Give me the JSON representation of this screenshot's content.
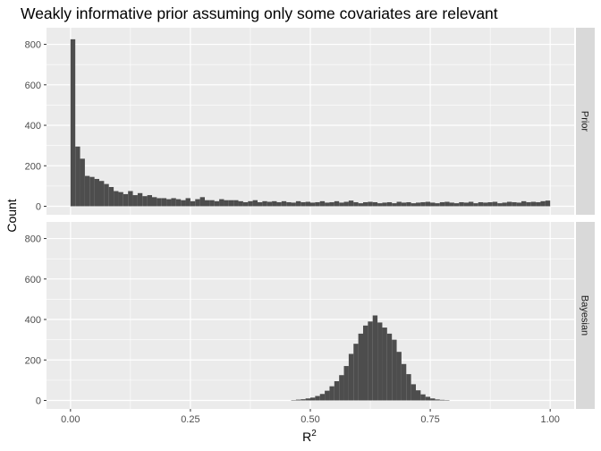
{
  "chart_data": {
    "type": "histogram",
    "title": "Weakly informative prior assuming only some covariates are relevant",
    "xlabel": "R",
    "xlabel_superscript": "2",
    "ylabel": "Count",
    "xlim": [
      0,
      1
    ],
    "ylim": [
      0,
      840
    ],
    "x_ticks": [
      {
        "value": 0.0,
        "label": "0.00"
      },
      {
        "value": 0.25,
        "label": "0.25"
      },
      {
        "value": 0.5,
        "label": "0.50"
      },
      {
        "value": 0.75,
        "label": "0.75"
      },
      {
        "value": 1.0,
        "label": "1.00"
      }
    ],
    "y_ticks": [
      {
        "value": 0,
        "label": "0"
      },
      {
        "value": 200,
        "label": "200"
      },
      {
        "value": 400,
        "label": "400"
      },
      {
        "value": 600,
        "label": "600"
      },
      {
        "value": 800,
        "label": "800"
      }
    ],
    "bin_width": 0.01,
    "bin_start": 0.0,
    "bar_color": "#4d4d4d",
    "panel_bg": "#ebebeb",
    "strip_bg": "#d9d9d9",
    "grid": true,
    "panels": [
      {
        "name": "Prior",
        "counts": [
          825,
          295,
          235,
          150,
          145,
          135,
          125,
          110,
          95,
          75,
          70,
          60,
          75,
          55,
          65,
          50,
          55,
          45,
          40,
          40,
          35,
          40,
          35,
          30,
          40,
          25,
          35,
          45,
          30,
          30,
          25,
          35,
          30,
          30,
          30,
          25,
          20,
          25,
          30,
          20,
          25,
          22,
          25,
          20,
          25,
          20,
          18,
          25,
          20,
          22,
          18,
          20,
          25,
          18,
          20,
          25,
          18,
          22,
          28,
          20,
          15,
          20,
          22,
          20,
          15,
          18,
          20,
          15,
          22,
          18,
          20,
          15,
          18,
          20,
          22,
          18,
          15,
          20,
          22,
          18,
          15,
          20,
          18,
          22,
          15,
          20,
          18,
          20,
          22,
          15,
          18,
          22,
          20,
          18,
          25,
          20,
          22,
          20,
          25,
          28
        ]
      },
      {
        "name": "Bayesian",
        "counts": [
          0,
          0,
          0,
          0,
          0,
          0,
          0,
          0,
          0,
          0,
          0,
          0,
          0,
          0,
          0,
          0,
          0,
          0,
          0,
          0,
          0,
          0,
          0,
          0,
          0,
          0,
          0,
          0,
          0,
          0,
          0,
          0,
          0,
          0,
          0,
          0,
          0,
          0,
          0,
          0,
          0,
          0,
          0,
          0,
          0,
          0,
          2,
          4,
          6,
          10,
          14,
          22,
          32,
          48,
          70,
          95,
          125,
          170,
          230,
          280,
          330,
          370,
          390,
          420,
          385,
          360,
          330,
          300,
          240,
          180,
          130,
          80,
          50,
          30,
          18,
          10,
          5,
          3,
          2,
          0,
          0,
          0,
          0,
          0,
          0,
          0,
          0,
          0,
          0,
          0,
          0,
          0,
          0,
          0,
          0,
          0,
          0,
          0,
          0,
          0
        ]
      }
    ]
  }
}
